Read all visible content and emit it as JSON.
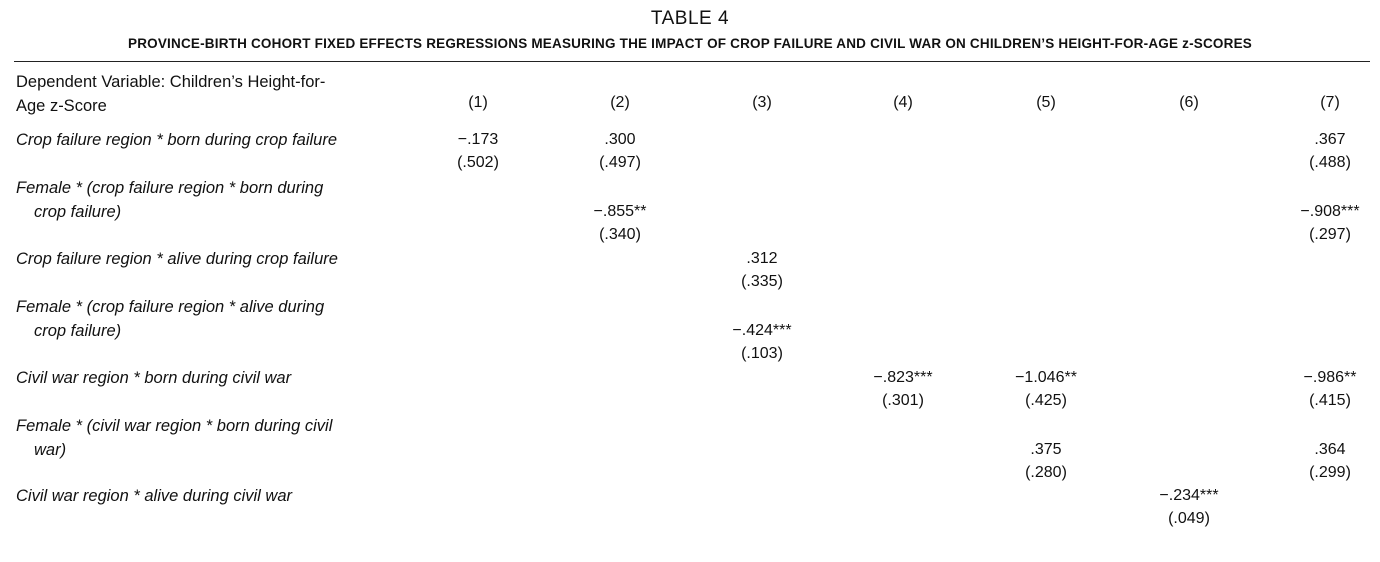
{
  "table": {
    "title": "TABLE 4",
    "subtitle": "PROVINCE-BIRTH COHORT FIXED EFFECTS REGRESSIONS MEASURING THE IMPACT OF CROP FAILURE AND CIVIL WAR ON CHILDREN’S HEIGHT-FOR-AGE z-SCORES",
    "dependent_variable": {
      "line1": "Dependent Variable: Children’s Height-for-",
      "line2": "Age z-Score"
    },
    "columns": [
      "(1)",
      "(2)",
      "(3)",
      "(4)",
      "(5)",
      "(6)",
      "(7)"
    ],
    "rows": [
      {
        "label_line1": "Crop failure region * born during crop failure",
        "label_line2": "",
        "cells": [
          {
            "coef": "−.173",
            "se": "(.502)"
          },
          {
            "coef": ".300",
            "se": "(.497)"
          },
          {
            "coef": "",
            "se": ""
          },
          {
            "coef": "",
            "se": ""
          },
          {
            "coef": "",
            "se": ""
          },
          {
            "coef": "",
            "se": ""
          },
          {
            "coef": ".367",
            "se": "(.488)"
          }
        ]
      },
      {
        "label_line1": "Female * (crop failure region * born during",
        "label_line2": "crop failure)",
        "cells": [
          {
            "coef": "",
            "se": ""
          },
          {
            "coef": "−.855**",
            "se": "(.340)"
          },
          {
            "coef": "",
            "se": ""
          },
          {
            "coef": "",
            "se": ""
          },
          {
            "coef": "",
            "se": ""
          },
          {
            "coef": "",
            "se": ""
          },
          {
            "coef": "−.908***",
            "se": "(.297)"
          }
        ]
      },
      {
        "label_line1": "Crop failure region * alive during crop failure",
        "label_line2": "",
        "cells": [
          {
            "coef": "",
            "se": ""
          },
          {
            "coef": "",
            "se": ""
          },
          {
            "coef": ".312",
            "se": "(.335)"
          },
          {
            "coef": "",
            "se": ""
          },
          {
            "coef": "",
            "se": ""
          },
          {
            "coef": "",
            "se": ""
          },
          {
            "coef": "",
            "se": ""
          }
        ]
      },
      {
        "label_line1": "Female * (crop failure region * alive during",
        "label_line2": "crop failure)",
        "cells": [
          {
            "coef": "",
            "se": ""
          },
          {
            "coef": "",
            "se": ""
          },
          {
            "coef": "−.424***",
            "se": "(.103)"
          },
          {
            "coef": "",
            "se": ""
          },
          {
            "coef": "",
            "se": ""
          },
          {
            "coef": "",
            "se": ""
          },
          {
            "coef": "",
            "se": ""
          }
        ]
      },
      {
        "label_line1": "Civil war region * born during civil war",
        "label_line2": "",
        "cells": [
          {
            "coef": "",
            "se": ""
          },
          {
            "coef": "",
            "se": ""
          },
          {
            "coef": "",
            "se": ""
          },
          {
            "coef": "−.823***",
            "se": "(.301)"
          },
          {
            "coef": "−1.046**",
            "se": "(.425)"
          },
          {
            "coef": "",
            "se": ""
          },
          {
            "coef": "−.986**",
            "se": "(.415)"
          }
        ]
      },
      {
        "label_line1": "Female * (civil war region * born during civil",
        "label_line2": "war)",
        "cells": [
          {
            "coef": "",
            "se": ""
          },
          {
            "coef": "",
            "se": ""
          },
          {
            "coef": "",
            "se": ""
          },
          {
            "coef": "",
            "se": ""
          },
          {
            "coef": ".375",
            "se": "(.280)"
          },
          {
            "coef": "",
            "se": ""
          },
          {
            "coef": ".364",
            "se": "(.299)"
          }
        ]
      },
      {
        "label_line1": "Civil war region * alive during civil war",
        "label_line2": "",
        "cells": [
          {
            "coef": "",
            "se": ""
          },
          {
            "coef": "",
            "se": ""
          },
          {
            "coef": "",
            "se": ""
          },
          {
            "coef": "",
            "se": ""
          },
          {
            "coef": "",
            "se": ""
          },
          {
            "coef": "−.234***",
            "se": "(.049)"
          },
          {
            "coef": "",
            "se": ""
          }
        ]
      }
    ]
  }
}
